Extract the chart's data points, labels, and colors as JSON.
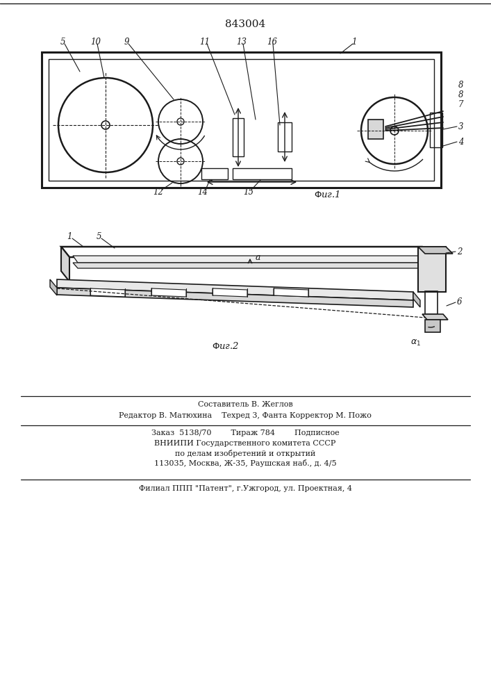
{
  "patent_number": "843004",
  "background_color": "#ffffff",
  "line_color": "#1a1a1a",
  "footer_line1": "Составитель В. Жеглов",
  "footer_line2": "Редактор В. Матюхина    Техред 3, Фанта Корректор М. Пожо",
  "footer_line3": "Заказ  5138/70        Тираж 784        Подписное",
  "footer_line4": "ВНИИПИ Государственного комитета СССР",
  "footer_line5": "по делам изобретений и открытий",
  "footer_line6": "113035, Москва, Ж-35, Раушская наб., д. 4/5",
  "footer_line7": "Филиал ППП \"Патент\", г.Ужгород, ул. Проектная, 4"
}
